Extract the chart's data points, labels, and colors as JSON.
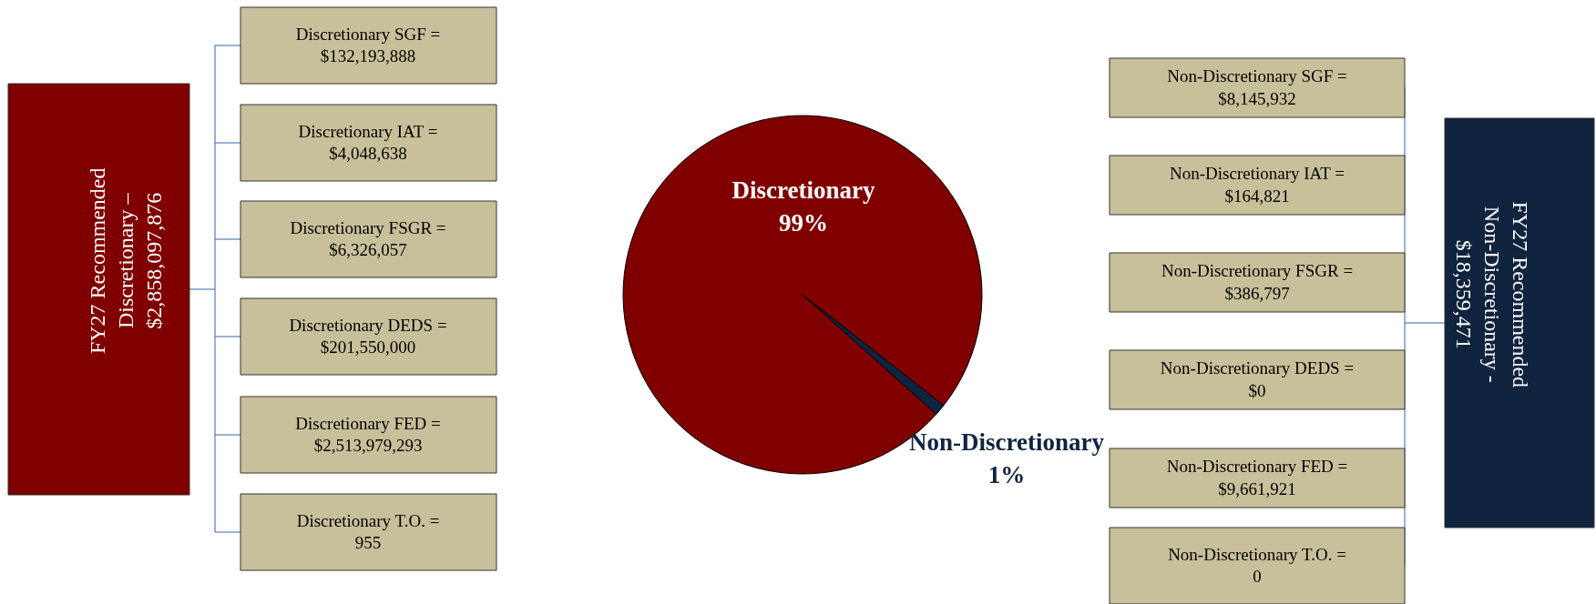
{
  "chart_data": {
    "type": "pie",
    "categories": [
      "Discretionary",
      "Non-Discretionary"
    ],
    "values": [
      99,
      1
    ],
    "colors": [
      "#800000",
      "#0f2440"
    ],
    "value_labels": [
      "99%",
      "1%"
    ],
    "annotations": [
      "FY27 Recommended\nDiscretionary –\n$2,858,097,876",
      "Discretionary SGF =\n$132,193,888",
      "Discretionary IAT =\n$4,048,638",
      "Discretionary FSGR =\n$6,326,057",
      "Discretionary DEDS =\n$201,550,000",
      "Discretionary FED =\n$2,513,979,293",
      "Discretionary T.O. =\n955",
      "FY27 Recommended\nNon-Discretionary -\n$18,359,471",
      "Non-Discretionary SGF =\n$8,145,932",
      "Non-Discretionary IAT =\n$164,821",
      "Non-Discretionary FSGR =\n$386,797",
      "Non-Discretionary DEDS =\n$0",
      "Non-Discretionary FED =\n$9,661,921",
      "Non-Discretionary T.O. =\n0"
    ]
  }
}
